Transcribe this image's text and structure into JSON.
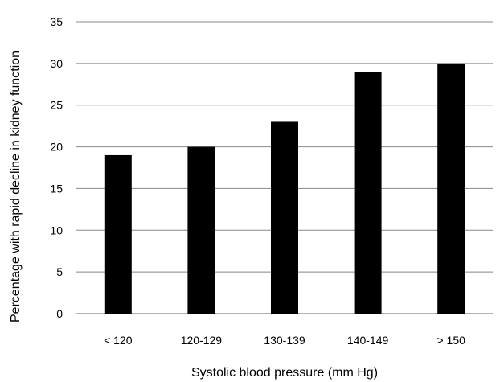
{
  "chart_data": {
    "type": "bar",
    "categories": [
      "< 120",
      "120-129",
      "130-139",
      "140-149",
      "> 150"
    ],
    "values": [
      19,
      20,
      23,
      29,
      30
    ],
    "xlabel": "Systolic blood pressure (mm Hg)",
    "ylabel": "Percentage with rapid decline in kidney function",
    "ylim": [
      0,
      35
    ],
    "yticks": [
      "0",
      "5",
      "10",
      "15",
      "20",
      "25",
      "30",
      "35"
    ],
    "grid": true,
    "bar_color": "#000000",
    "grid_color": "#888888"
  }
}
